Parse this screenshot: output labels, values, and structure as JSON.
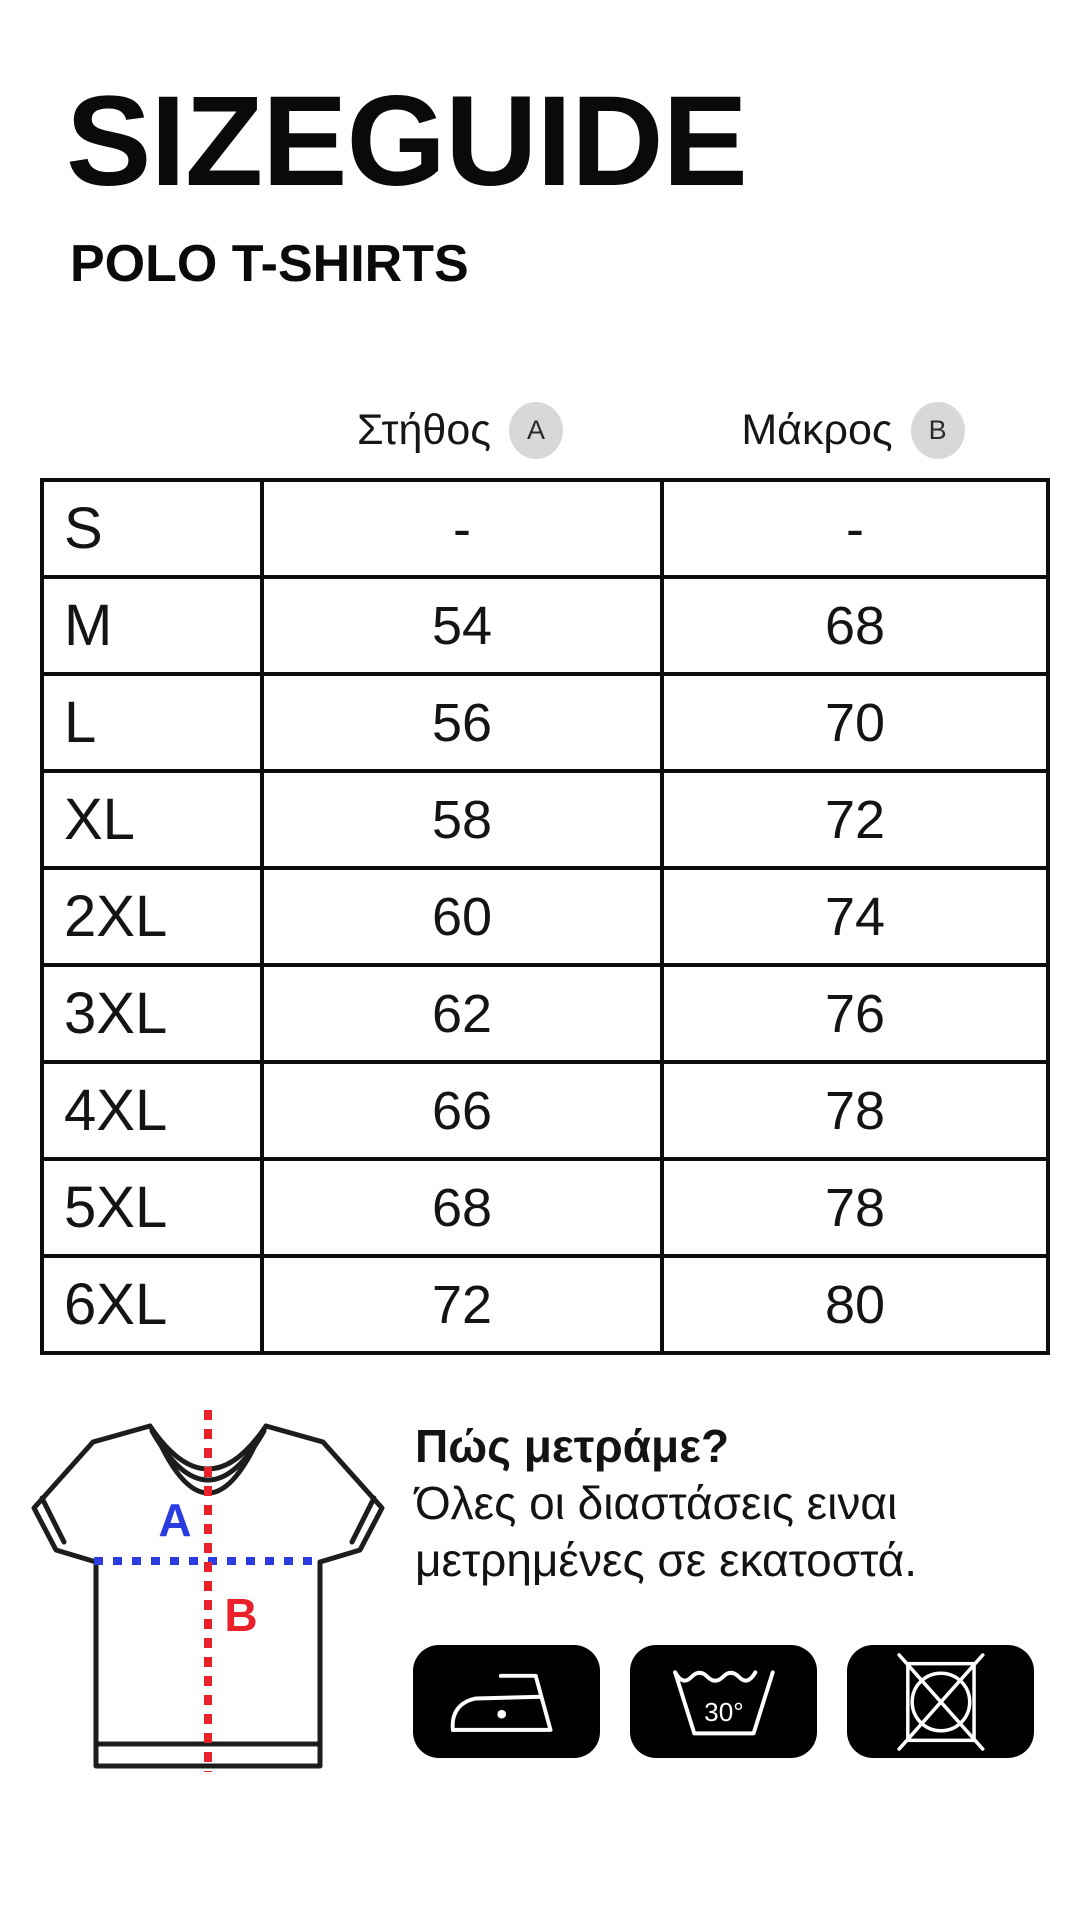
{
  "page": {
    "background": "#ffffff",
    "text_color": "#111111"
  },
  "header": {
    "title": "SIZEGUIDE",
    "subtitle": "POLO T-SHIRTS"
  },
  "size_table": {
    "column_headers": [
      {
        "label": "Στήθος",
        "badge": "A"
      },
      {
        "label": "Μάκρος",
        "badge": "B"
      }
    ],
    "badge_bg": "#d8d8d8",
    "border_color": "#0d0d0d",
    "rows": [
      {
        "size": "S",
        "chest": "-",
        "length": "-"
      },
      {
        "size": "M",
        "chest": "54",
        "length": "68"
      },
      {
        "size": "L",
        "chest": "56",
        "length": "70"
      },
      {
        "size": "XL",
        "chest": "58",
        "length": "72"
      },
      {
        "size": "2XL",
        "chest": "60",
        "length": "74"
      },
      {
        "size": "3XL",
        "chest": "62",
        "length": "76"
      },
      {
        "size": "4XL",
        "chest": "66",
        "length": "78"
      },
      {
        "size": "5XL",
        "chest": "68",
        "length": "78"
      },
      {
        "size": "6XL",
        "chest": "72",
        "length": "80"
      }
    ]
  },
  "diagram": {
    "chest_label": "A",
    "chest_color": "#2b3ce0",
    "length_label": "B",
    "length_color": "#e8212b",
    "outline_color": "#1d1d1b"
  },
  "measure_info": {
    "heading": "Πώς μετράμε?",
    "line1": "Όλες οι διαστάσεις ειναι",
    "line2": "μετρημένες σε εκατοστά."
  },
  "care_icons": {
    "background": "#000000",
    "items": [
      {
        "name": "iron-icon"
      },
      {
        "name": "wash-temperature-icon",
        "label": "30°"
      },
      {
        "name": "do-not-tumble-dry-icon"
      }
    ]
  }
}
